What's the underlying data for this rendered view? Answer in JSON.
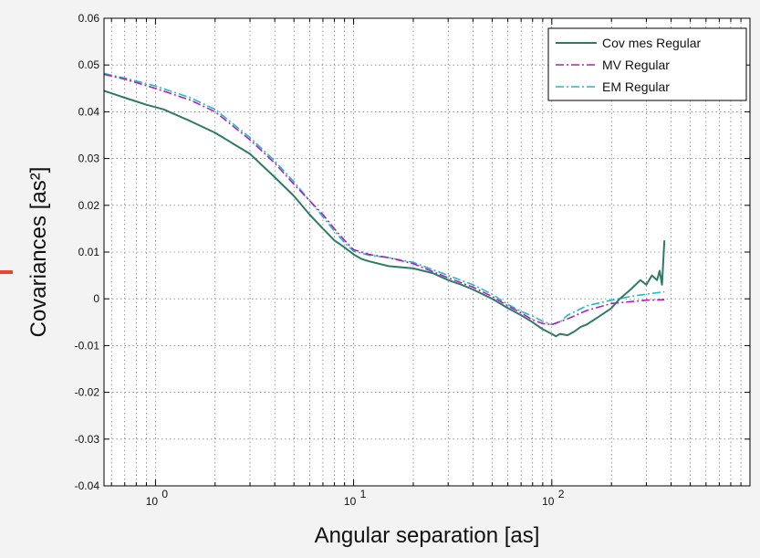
{
  "chart_data": {
    "type": "line",
    "xlabel": "Angular separation [as]",
    "ylabel": "Covariances [as²]",
    "x_scale": "log",
    "xlim": [
      0.55,
      1000
    ],
    "ylim": [
      -0.04,
      0.06
    ],
    "grid": true,
    "legend_position": "top-right",
    "x_ticks": [
      {
        "value": 1,
        "label": "10",
        "exp": "0"
      },
      {
        "value": 10,
        "label": "10",
        "exp": "1"
      },
      {
        "value": 100,
        "label": "10",
        "exp": "2"
      }
    ],
    "y_ticks": [
      {
        "value": 0.06,
        "label": "0.06"
      },
      {
        "value": 0.05,
        "label": "0.05"
      },
      {
        "value": 0.04,
        "label": "0.04"
      },
      {
        "value": 0.03,
        "label": "0.03"
      },
      {
        "value": 0.02,
        "label": "0.02"
      },
      {
        "value": 0.01,
        "label": "0.01"
      },
      {
        "value": 0,
        "label": "0"
      },
      {
        "value": -0.01,
        "label": "-0.01"
      },
      {
        "value": -0.02,
        "label": "-0.02"
      },
      {
        "value": -0.03,
        "label": "-0.03"
      },
      {
        "value": -0.04,
        "label": "-0.04"
      }
    ],
    "series": [
      {
        "name": "Cov mes Regular",
        "color": "#2f7a66",
        "dash": "solid",
        "x": [
          0.55,
          0.7,
          0.9,
          1.1,
          1.5,
          2,
          3,
          4,
          5,
          6,
          7,
          8,
          9,
          10,
          11,
          12,
          15,
          20,
          25,
          30,
          35,
          40,
          50,
          60,
          70,
          80,
          90,
          100,
          105,
          110,
          120,
          130,
          140,
          150,
          170,
          200,
          220,
          250,
          280,
          300,
          320,
          340,
          350,
          360,
          370
        ],
        "y": [
          0.0445,
          0.043,
          0.0415,
          0.0405,
          0.038,
          0.0355,
          0.031,
          0.026,
          0.022,
          0.018,
          0.015,
          0.0125,
          0.011,
          0.0095,
          0.0085,
          0.008,
          0.007,
          0.0065,
          0.0055,
          0.004,
          0.003,
          0.002,
          0.0,
          -0.002,
          -0.0035,
          -0.005,
          -0.0065,
          -0.0075,
          -0.008,
          -0.0075,
          -0.0078,
          -0.007,
          -0.006,
          -0.0055,
          -0.004,
          -0.002,
          0.0,
          0.002,
          0.004,
          0.003,
          0.005,
          0.004,
          0.006,
          0.003,
          0.0125
        ]
      },
      {
        "name": "MV Regular",
        "color": "#b01fbf",
        "dash": "dashdot",
        "x": [
          0.55,
          0.7,
          1,
          1.5,
          2,
          3,
          4,
          5,
          6,
          7,
          8,
          9,
          10,
          12,
          15,
          20,
          30,
          40,
          50,
          60,
          70,
          80,
          90,
          100,
          120,
          150,
          200,
          300,
          370
        ],
        "y": [
          0.048,
          0.047,
          0.045,
          0.0425,
          0.04,
          0.034,
          0.029,
          0.0245,
          0.021,
          0.018,
          0.015,
          0.0125,
          0.0105,
          0.0095,
          0.0088,
          0.0075,
          0.0045,
          0.0025,
          0.0005,
          -0.0015,
          -0.003,
          -0.0045,
          -0.0053,
          -0.0055,
          -0.0043,
          -0.0025,
          -0.001,
          -0.0003,
          -0.0002
        ]
      },
      {
        "name": "EM Regular",
        "color": "#1fbcc0",
        "dash": "dashdot",
        "x": [
          0.55,
          0.7,
          1,
          1.5,
          2,
          3,
          4,
          5,
          6,
          7,
          8,
          9,
          10,
          12,
          15,
          20,
          30,
          40,
          50,
          60,
          70,
          80,
          90,
          100,
          110,
          120,
          150,
          200,
          250,
          300,
          370
        ],
        "y": [
          0.0482,
          0.0472,
          0.0455,
          0.043,
          0.0405,
          0.0345,
          0.0295,
          0.025,
          0.021,
          0.0175,
          0.0145,
          0.012,
          0.0102,
          0.0093,
          0.0088,
          0.0078,
          0.005,
          0.003,
          0.001,
          -0.0012,
          -0.0027,
          -0.0037,
          -0.0048,
          -0.0055,
          -0.005,
          -0.0035,
          -0.0015,
          -0.0003,
          0.0005,
          0.001,
          0.0015
        ]
      }
    ]
  }
}
